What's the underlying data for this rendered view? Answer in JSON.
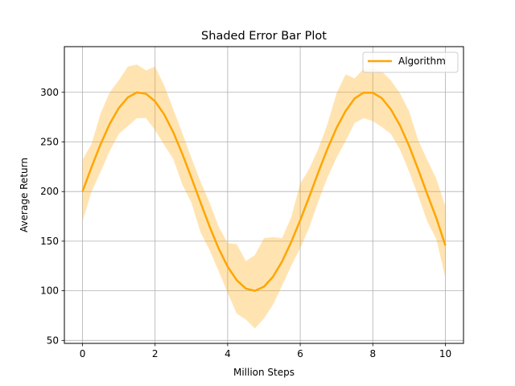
{
  "chart_data": {
    "type": "line",
    "title": "Shaded Error Bar Plot",
    "xlabel": "Million Steps",
    "ylabel": "Average Return",
    "xlim": [
      -0.5,
      10.5
    ],
    "ylim": [
      47,
      346
    ],
    "xticks": [
      0,
      2,
      4,
      6,
      8,
      10
    ],
    "yticks": [
      50,
      100,
      150,
      200,
      250,
      300
    ],
    "grid": true,
    "legend_position": "top-right",
    "series": [
      {
        "name": "Algorithm",
        "color": "#FFA500",
        "band_color": "#FFA500",
        "band_opacity": 0.3,
        "x": [
          0,
          0.25,
          0.5,
          0.75,
          1,
          1.25,
          1.5,
          1.75,
          2,
          2.25,
          2.5,
          2.75,
          3,
          3.25,
          3.5,
          3.75,
          4,
          4.25,
          4.5,
          4.75,
          5,
          5.25,
          5.5,
          5.75,
          6,
          6.25,
          6.5,
          6.75,
          7,
          7.25,
          7.5,
          7.75,
          8,
          8.25,
          8.5,
          8.75,
          9,
          9.25,
          9.5,
          9.75,
          10
        ],
        "y": [
          200,
          224.7,
          247.9,
          268.2,
          284.1,
          294.9,
          299.9,
          298.4,
          290.9,
          277.8,
          259.8,
          238.1,
          214.1,
          189.2,
          164.9,
          142.8,
          124.3,
          110.7,
          102.3,
          100.0,
          104.1,
          114.2,
          129.5,
          148.9,
          171.1,
          195.0,
          219.4,
          242.9,
          264.1,
          281.2,
          293.8,
          299.7,
          299.6,
          294.1,
          282.7,
          266.6,
          245.9,
          222.4,
          197.5,
          173.3,
          145.6
        ],
        "upper": [
          232,
          248,
          279,
          300,
          312,
          326,
          328,
          322,
          326,
          307,
          283,
          259,
          234,
          210,
          189,
          165,
          148,
          147,
          130,
          136,
          153,
          154,
          153,
          174,
          208,
          223,
          243,
          268,
          299,
          318,
          314,
          324,
          324,
          321,
          312,
          299,
          281,
          252,
          232,
          213,
          185
        ],
        "lower": [
          170,
          200,
          220,
          241,
          258,
          266,
          274,
          274,
          262,
          247,
          233,
          207,
          189,
          159,
          141,
          120,
          98,
          77,
          71,
          62,
          72,
          86,
          105,
          125,
          143,
          164,
          190,
          214,
          234,
          251,
          269,
          274,
          271,
          265,
          258,
          242,
          220,
          196,
          170,
          152,
          113
        ]
      }
    ]
  }
}
